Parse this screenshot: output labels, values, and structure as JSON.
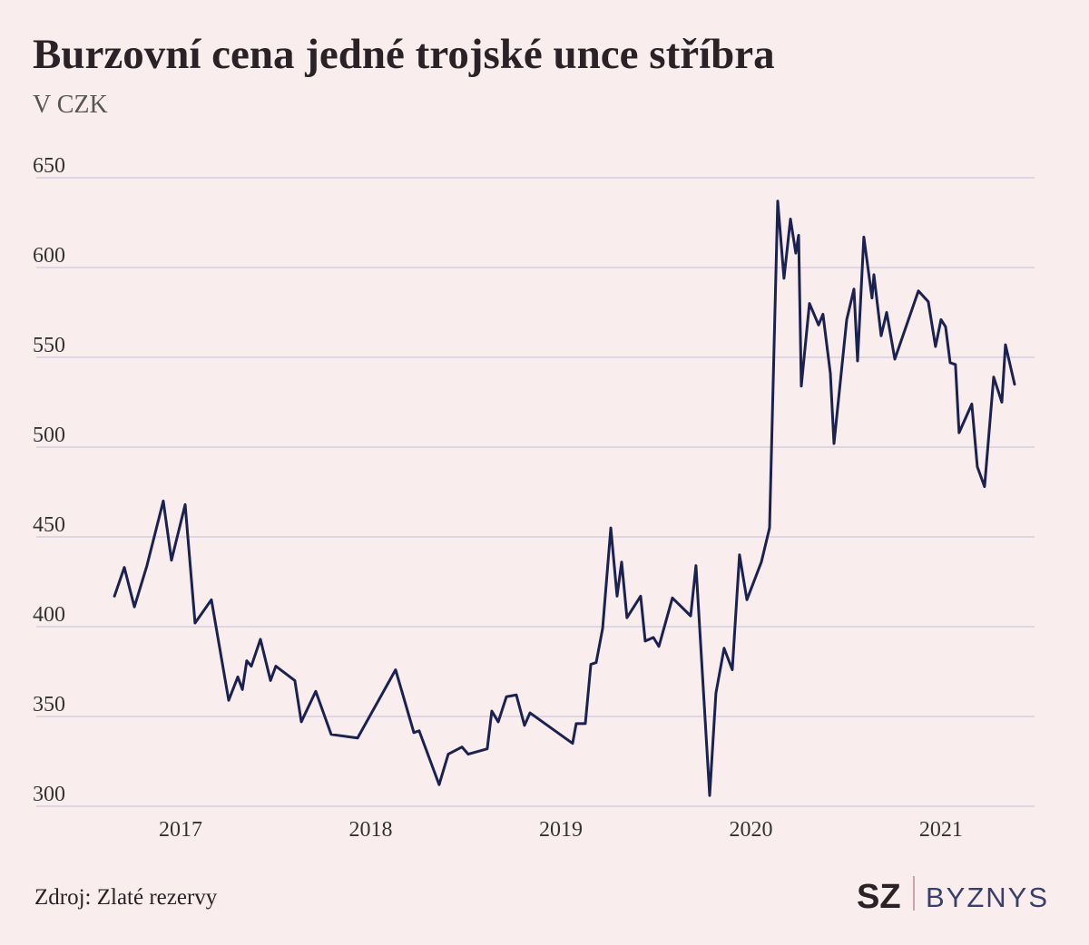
{
  "chart_data": {
    "type": "line",
    "title": "Burzovní cena jedné trojské unce stříbra",
    "subtitle": "V CZK",
    "source": "Zdroj: Zlaté rezervy",
    "logo": {
      "brand": "SZ",
      "section": "BYZNYS"
    },
    "color": "#1b2150",
    "grid": true,
    "xlim": [
      2016.241,
      2021.492
    ],
    "xticks": [
      2017,
      2018,
      2019,
      2020,
      2021
    ],
    "ylim": [
      300,
      650
    ],
    "yticks": [
      300,
      350,
      400,
      450,
      500,
      550,
      600,
      650
    ],
    "x": [
      2016.652,
      2016.704,
      2016.757,
      2016.823,
      2016.909,
      2016.952,
      2017.024,
      2017.076,
      2017.162,
      2017.253,
      2017.301,
      2017.325,
      2017.348,
      2017.372,
      2017.42,
      2017.473,
      2017.501,
      2017.601,
      2017.635,
      2017.711,
      2017.792,
      2017.931,
      2018.131,
      2018.227,
      2018.255,
      2018.36,
      2018.408,
      2018.48,
      2018.513,
      2018.613,
      2018.637,
      2018.671,
      2018.714,
      2018.766,
      2018.809,
      2018.838,
      2019.062,
      2019.081,
      2019.129,
      2019.158,
      2019.186,
      2019.22,
      2019.263,
      2019.296,
      2019.32,
      2019.348,
      2019.42,
      2019.444,
      2019.487,
      2019.516,
      2019.587,
      2019.683,
      2019.711,
      2019.783,
      2019.816,
      2019.859,
      2019.902,
      2019.94,
      2019.979,
      2020.055,
      2020.098,
      2020.141,
      2020.174,
      2020.208,
      2020.236,
      2020.251,
      2020.265,
      2020.308,
      2020.356,
      2020.379,
      2020.418,
      2020.437,
      2020.504,
      2020.542,
      2020.561,
      2020.594,
      2020.637,
      2020.647,
      2020.685,
      2020.714,
      2020.757,
      2020.881,
      2020.933,
      2020.971,
      2021.0,
      2021.024,
      2021.048,
      2021.076,
      2021.095,
      2021.162,
      2021.191,
      2021.229,
      2021.277,
      2021.32,
      2021.339,
      2021.387
    ],
    "values": [
      417,
      433,
      411,
      434,
      470,
      437,
      468,
      402,
      415,
      359,
      372,
      365,
      381,
      378,
      393,
      370,
      378,
      370,
      347,
      364,
      340,
      338,
      376,
      341,
      342,
      312,
      329,
      333,
      329,
      332,
      353,
      347,
      361,
      362,
      345,
      352,
      335,
      346,
      346,
      379,
      380,
      399,
      455,
      417,
      436,
      405,
      417,
      392,
      394,
      389,
      416,
      406,
      434,
      306,
      363,
      388,
      376,
      440,
      415,
      436,
      455,
      637,
      594,
      627,
      608,
      618,
      534,
      580,
      568,
      574,
      541,
      502,
      571,
      588,
      548,
      617,
      583,
      596,
      562,
      575,
      549,
      587,
      581,
      556,
      571,
      567,
      547,
      546,
      508,
      524,
      489,
      478,
      539,
      525,
      557,
      535
    ]
  }
}
